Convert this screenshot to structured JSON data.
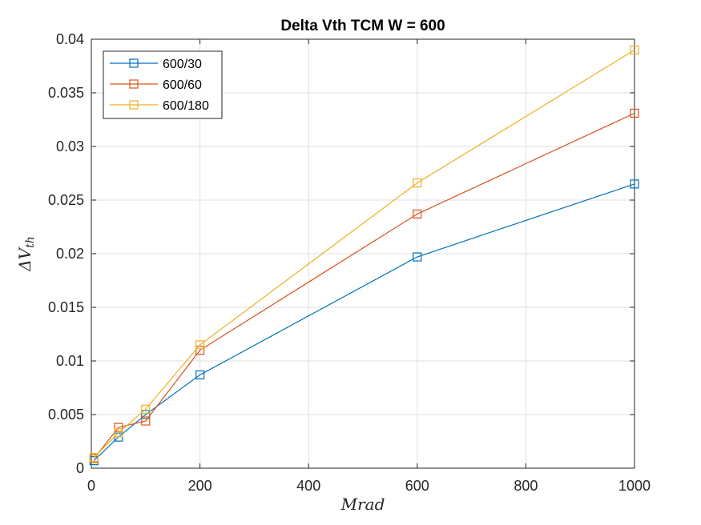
{
  "chart_data": {
    "type": "line",
    "title": "Delta Vth TCM W = 600",
    "xlabel": "Mrad",
    "ylabel_prefix": "ΔV",
    "ylabel_sub": "th",
    "xlim": [
      0,
      1000
    ],
    "ylim": [
      0,
      0.04
    ],
    "xticks": [
      0,
      200,
      400,
      600,
      800,
      1000
    ],
    "xtick_labels": [
      "0",
      "200",
      "400",
      "600",
      "800",
      "1000"
    ],
    "yticks": [
      0,
      0.005,
      0.01,
      0.015,
      0.02,
      0.025,
      0.03,
      0.035,
      0.04
    ],
    "ytick_labels": [
      "0",
      "0.005",
      "0.01",
      "0.015",
      "0.02",
      "0.025",
      "0.03",
      "0.035",
      "0.04"
    ],
    "grid": true,
    "legend_position": "top-left",
    "x": [
      5,
      50,
      100,
      200,
      600,
      1000
    ],
    "series": [
      {
        "name": "600/30",
        "color": "#0072BD",
        "marker": "square",
        "values": [
          0.0007,
          0.0029,
          0.005,
          0.0087,
          0.0197,
          0.0265
        ]
      },
      {
        "name": "600/60",
        "color": "#D95319",
        "marker": "square",
        "values": [
          0.0009,
          0.0038,
          0.0044,
          0.011,
          0.0237,
          0.0331
        ]
      },
      {
        "name": "600/180",
        "color": "#EDB120",
        "marker": "square",
        "values": [
          0.001,
          0.0033,
          0.0055,
          0.0115,
          0.0266,
          0.039
        ]
      }
    ]
  }
}
